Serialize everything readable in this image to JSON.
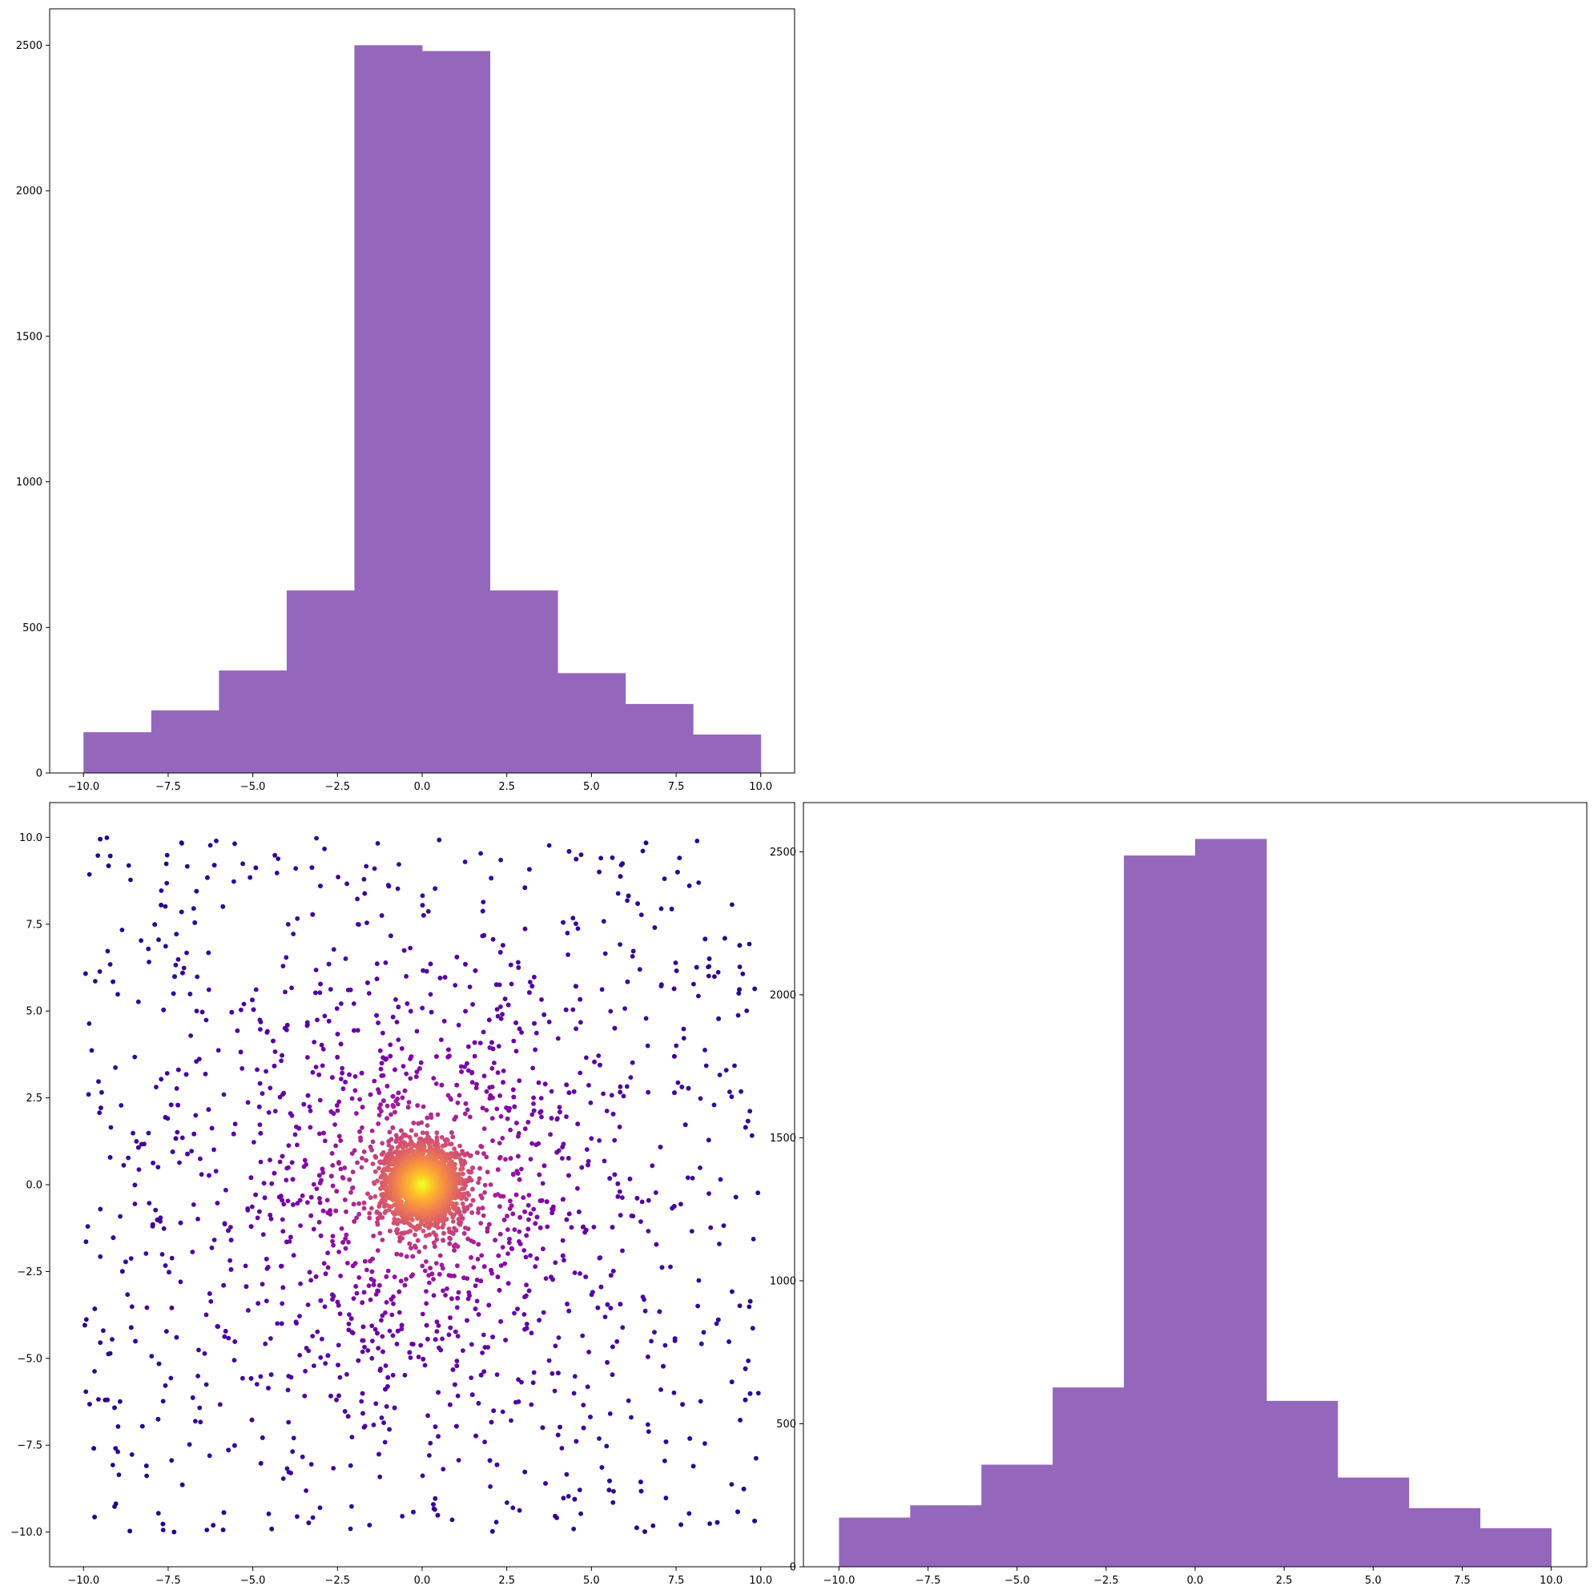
{
  "colors": {
    "hist_bar": "#9467bd",
    "axes_edge": "#000000",
    "background": "#ffffff",
    "scatter_colormap": "plasma"
  },
  "chart_data": [
    {
      "id": "hist-x",
      "type": "bar",
      "title": "",
      "xlabel": "",
      "ylabel": "",
      "bin_edges": [
        -10,
        -8,
        -6,
        -4,
        -2,
        0,
        2,
        4,
        6,
        8,
        10
      ],
      "values": [
        140,
        215,
        352,
        627,
        2500,
        2480,
        627,
        343,
        237,
        132
      ],
      "xlim": [
        -11,
        11
      ],
      "ylim": [
        0,
        2625
      ],
      "xticks": [
        -10,
        -7.5,
        -5,
        -2.5,
        0,
        2.5,
        5,
        7.5,
        10
      ],
      "xtick_labels": [
        "−10.0",
        "−7.5",
        "−5.0",
        "−2.5",
        "0.0",
        "2.5",
        "5.0",
        "7.5",
        "10.0"
      ],
      "yticks": [
        0,
        500,
        1000,
        1500,
        2000,
        2500
      ],
      "ytick_labels": [
        "0",
        "500",
        "1000",
        "1500",
        "2000",
        "2500"
      ],
      "grid": false,
      "legend": "none"
    },
    {
      "id": "scatter-xy",
      "type": "scatter",
      "title": "",
      "xlabel": "",
      "ylabel": "",
      "description_of_distribution": "about 5000 points; roughly uniform background over [-10,10] x [-10,10] plus a dense concentration around the origin; color by local density (plasma colormap, dark purple sparse to yellow dense)",
      "point_count": 5000,
      "xlim": [
        -11,
        11
      ],
      "ylim": [
        -11,
        11
      ],
      "xticks": [
        -10,
        -7.5,
        -5,
        -2.5,
        0,
        2.5,
        5,
        7.5,
        10
      ],
      "xtick_labels": [
        "−10.0",
        "−7.5",
        "−5.0",
        "−2.5",
        "0.0",
        "2.5",
        "5.0",
        "7.5",
        "10.0"
      ],
      "yticks": [
        -10,
        -7.5,
        -5,
        -2.5,
        0,
        2.5,
        5,
        7.5,
        10
      ],
      "ytick_labels": [
        "−10.0",
        "−7.5",
        "−5.0",
        "−2.5",
        "0.0",
        "2.5",
        "5.0",
        "7.5",
        "10.0"
      ],
      "grid": false,
      "legend": "none"
    },
    {
      "id": "hist-y",
      "type": "bar",
      "title": "",
      "xlabel": "",
      "ylabel": "",
      "bin_edges": [
        -10,
        -8,
        -6,
        -4,
        -2,
        0,
        2,
        4,
        6,
        8,
        10
      ],
      "values": [
        172,
        215,
        357,
        627,
        2487,
        2545,
        580,
        312,
        205,
        135
      ],
      "xlim": [
        -11,
        11
      ],
      "ylim": [
        0,
        2672
      ],
      "xticks": [
        -10,
        -7.5,
        -5,
        -2.5,
        0,
        2.5,
        5,
        7.5,
        10
      ],
      "xtick_labels": [
        "−10.0",
        "−7.5",
        "−5.0",
        "−2.5",
        "0.0",
        "2.5",
        "5.0",
        "7.5",
        "10.0"
      ],
      "yticks": [
        0,
        500,
        1000,
        1500,
        2000,
        2500
      ],
      "ytick_labels": [
        "0",
        "500",
        "1000",
        "1500",
        "2000",
        "2500"
      ],
      "grid": false,
      "legend": "none"
    }
  ]
}
